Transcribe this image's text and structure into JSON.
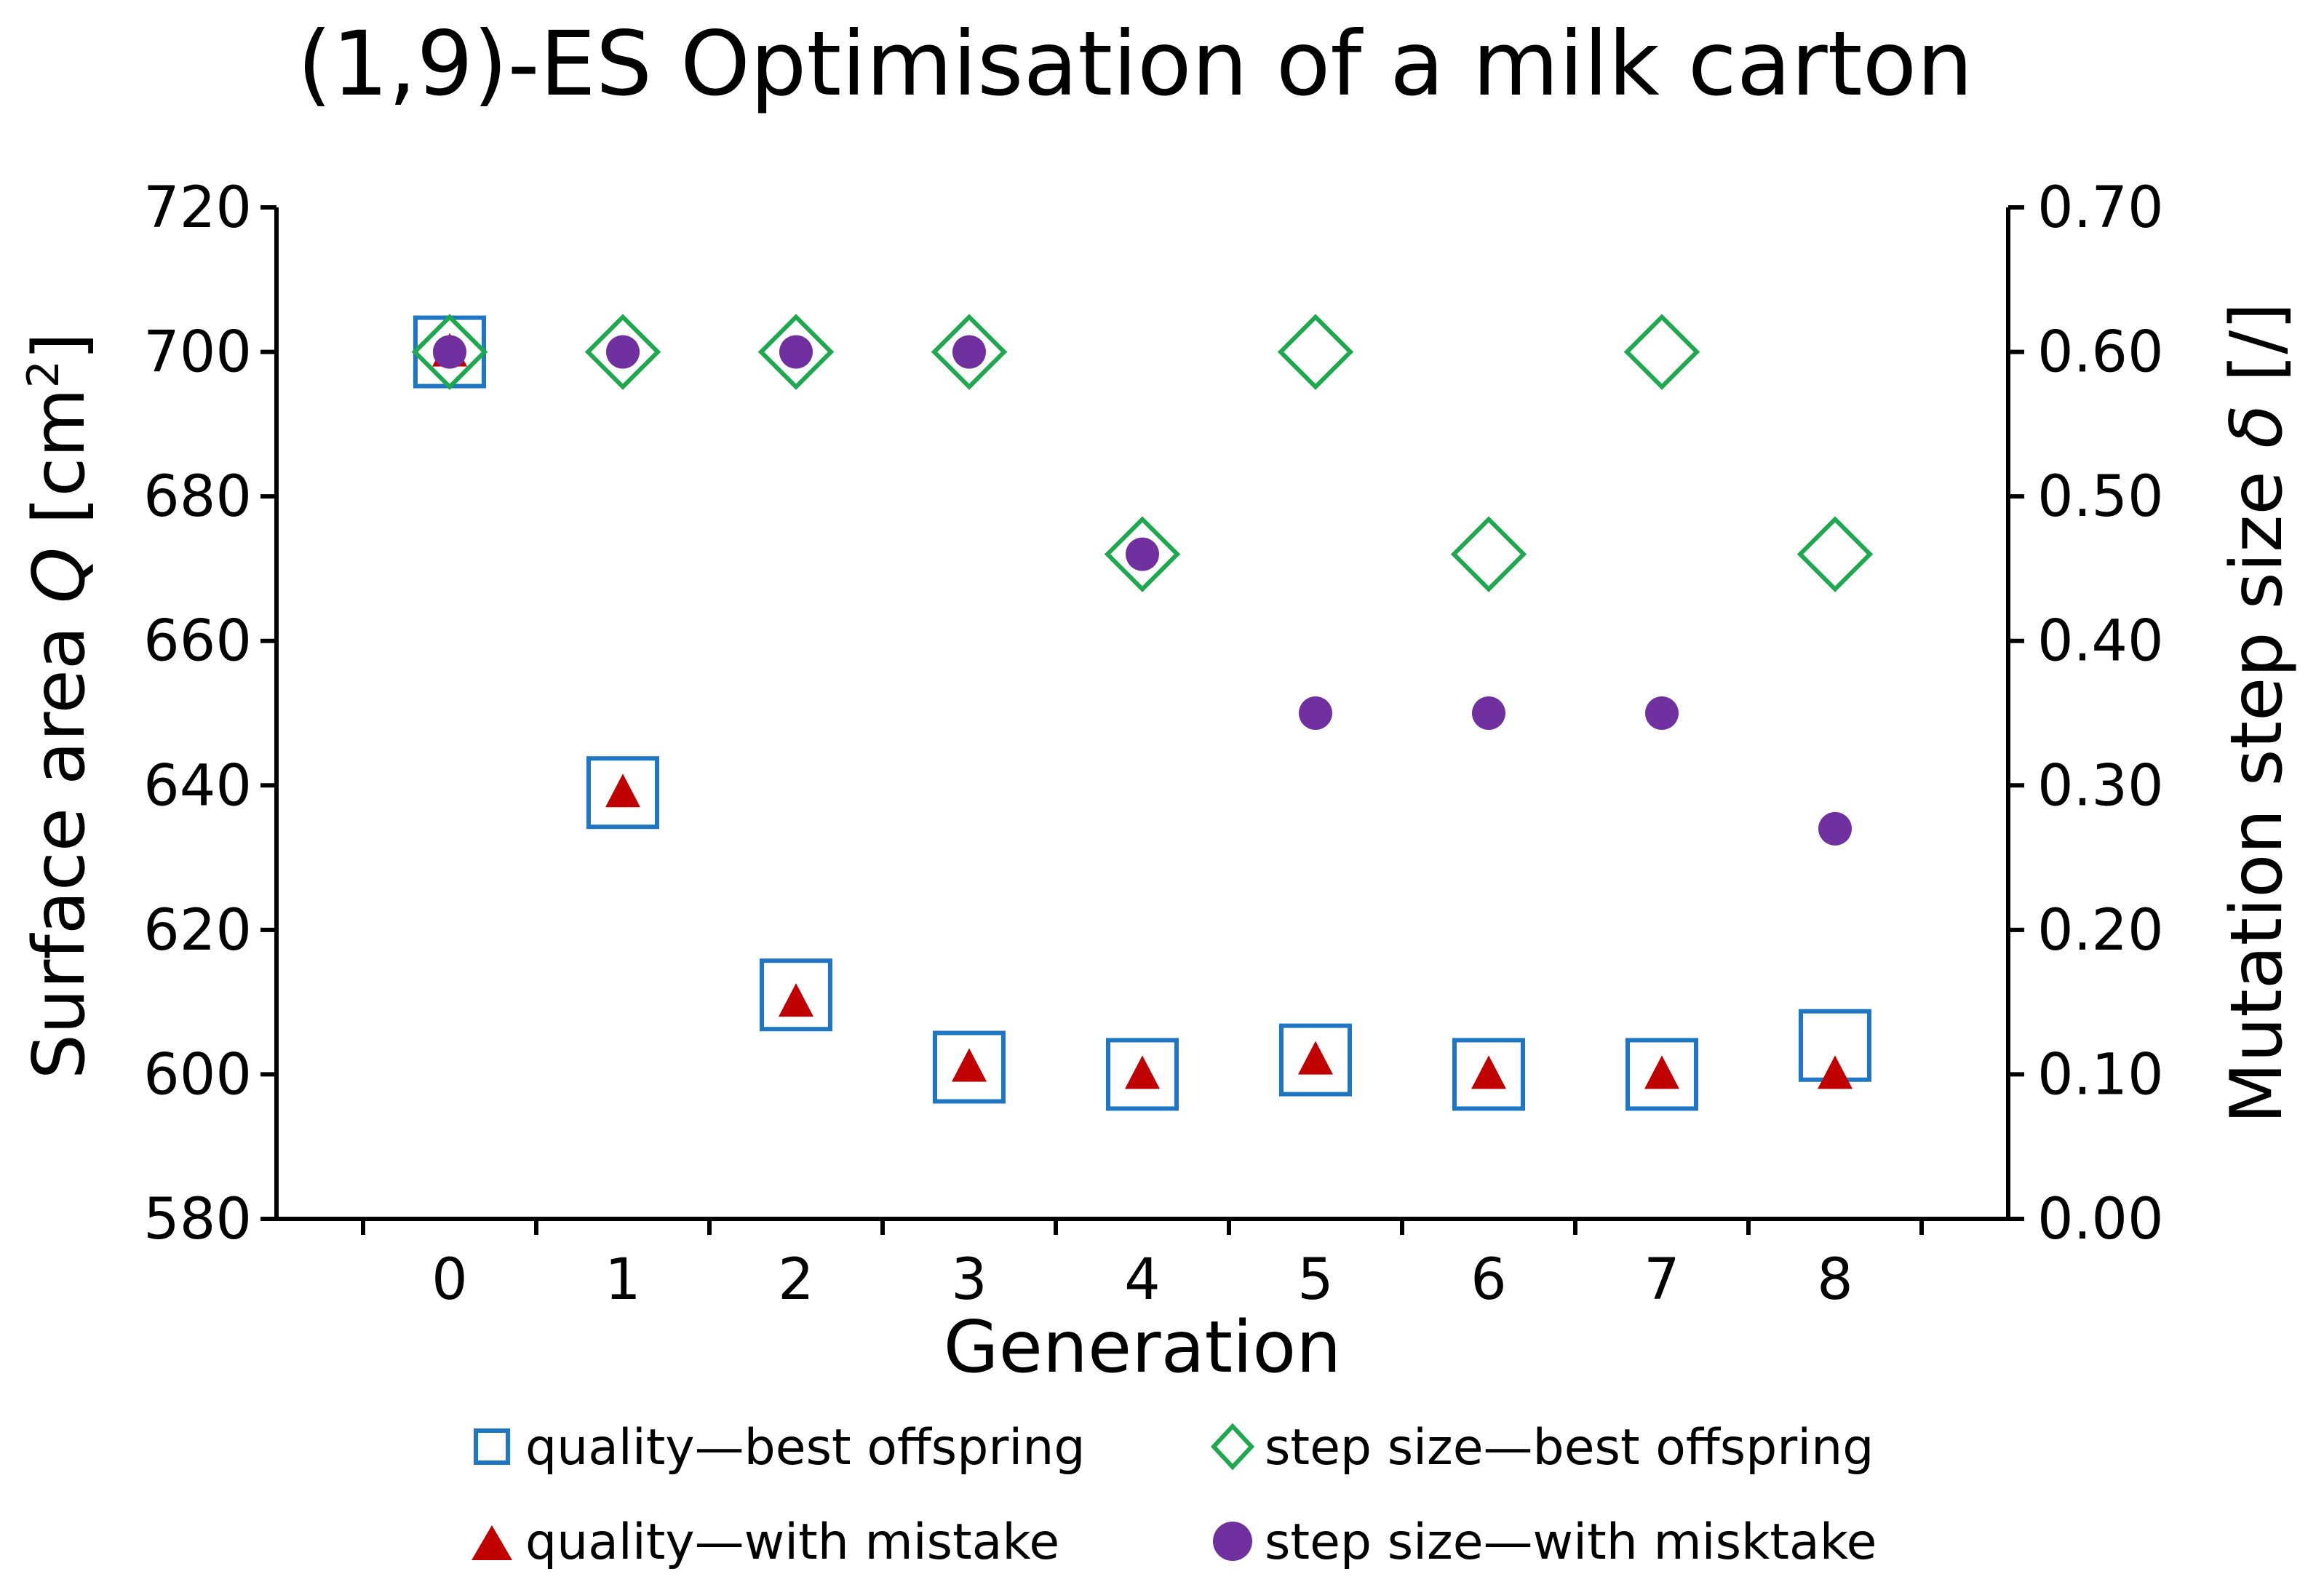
{
  "chart_data": {
    "type": "scatter",
    "title": "(1,9)-ES Optimisation of a milk carton",
    "xlabel": "Generation",
    "ylabel_left": "Surface area Q [cm²]",
    "ylabel_left_parts": {
      "prefix": "Surface area ",
      "var": "Q",
      "suffix": " [cm",
      "sup": "2",
      "close": "]"
    },
    "ylabel_right": "Mutation step size δ [/]",
    "ylabel_right_parts": {
      "prefix": "Mutation step size ",
      "var": "δ",
      "suffix": " [/]"
    },
    "x": [
      0,
      1,
      2,
      3,
      4,
      5,
      6,
      7,
      8
    ],
    "xlim": [
      -1,
      9
    ],
    "xticks": [
      "0",
      "1",
      "2",
      "3",
      "4",
      "5",
      "6",
      "7",
      "8"
    ],
    "ylim_left": [
      580,
      720
    ],
    "yticks_left": [
      "580",
      "600",
      "620",
      "640",
      "660",
      "680",
      "700",
      "720"
    ],
    "ylim_right": [
      0,
      0.7
    ],
    "yticks_right": [
      "0.00",
      "0.10",
      "0.20",
      "0.30",
      "0.40",
      "0.50",
      "0.60",
      "0.70"
    ],
    "grid": false,
    "legend_position": "bottom",
    "series": [
      {
        "name": "quality—best offspring",
        "axis": "left",
        "marker": "square",
        "color": "#1F77C4",
        "values": [
          700,
          639,
          611,
          601,
          600,
          602,
          600,
          600,
          604
        ]
      },
      {
        "name": "quality—with mistake",
        "axis": "left",
        "marker": "triangle",
        "color": "#C00000",
        "values": [
          700,
          639,
          610,
          601,
          600,
          602,
          600,
          600,
          600
        ]
      },
      {
        "name": "step size—best offspring",
        "axis": "right",
        "marker": "diamond",
        "color": "#1EA84F",
        "values": [
          0.6,
          0.6,
          0.6,
          0.6,
          0.46,
          0.6,
          0.46,
          0.6,
          0.46
        ]
      },
      {
        "name": "step size—with misktake",
        "axis": "right",
        "marker": "circle",
        "color": "#7030A0",
        "values": [
          0.6,
          0.6,
          0.6,
          0.6,
          0.46,
          0.35,
          0.35,
          0.35,
          0.27
        ]
      }
    ]
  }
}
